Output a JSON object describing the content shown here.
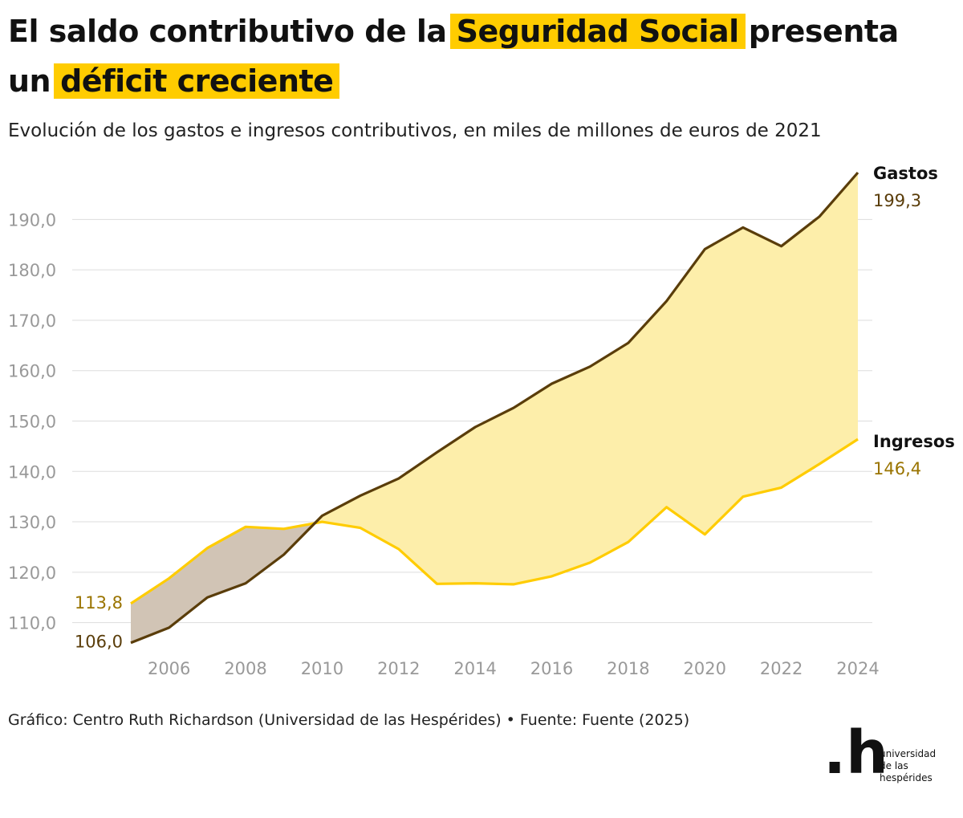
{
  "header": {
    "title_part1": "El saldo contributivo de la",
    "title_highlight1": "Seguridad Social",
    "title_part2": "presenta un",
    "title_highlight2": "déficit creciente",
    "subtitle": "Evolución de los gastos e ingresos contributivos, en miles de millones de euros de 2021"
  },
  "footer": {
    "source": "Gráfico: Centro Ruth Richardson (Universidad de las Hespérides) • Fuente: Fuente (2025)",
    "logo_mark": ".h",
    "logo_line1": "universidad",
    "logo_line2": "de las",
    "logo_line3": "hespérides"
  },
  "chart_data": {
    "type": "line",
    "title": "",
    "xlabel": "",
    "ylabel": "",
    "x": [
      2005,
      2006,
      2007,
      2008,
      2009,
      2010,
      2011,
      2012,
      2013,
      2014,
      2015,
      2016,
      2017,
      2018,
      2019,
      2020,
      2021,
      2022,
      2023,
      2024
    ],
    "x_ticks": [
      2006,
      2008,
      2010,
      2012,
      2014,
      2016,
      2018,
      2020,
      2022,
      2024
    ],
    "x_tick_labels": [
      "2006",
      "2008",
      "2010",
      "2012",
      "2014",
      "2016",
      "2018",
      "2020",
      "2022",
      "2024"
    ],
    "y_ticks": [
      110,
      120,
      130,
      140,
      150,
      160,
      170,
      180,
      190
    ],
    "y_tick_labels": [
      "110,0",
      "120,0",
      "130,0",
      "140,0",
      "150,0",
      "160,0",
      "170,0",
      "180,0",
      "190,0"
    ],
    "ylim": [
      105,
      199.3
    ],
    "grid": true,
    "series": [
      {
        "name": "Gastos",
        "color": "#5a3d0a",
        "values": [
          106.0,
          109.0,
          115.0,
          117.8,
          123.5,
          131.2,
          135.2,
          138.6,
          143.8,
          148.8,
          152.6,
          157.4,
          160.8,
          165.5,
          173.8,
          184.1,
          188.4,
          184.7,
          190.6,
          199.3
        ],
        "end_label": "199,3",
        "start_label": "106,0"
      },
      {
        "name": "Ingresos",
        "color": "#ffcc00",
        "values": [
          113.8,
          118.8,
          124.8,
          129.0,
          128.6,
          130.0,
          128.8,
          124.6,
          117.7,
          117.8,
          117.6,
          119.2,
          121.9,
          126.0,
          132.9,
          127.5,
          135.0,
          136.8,
          141.5,
          146.4
        ],
        "end_label": "146,4",
        "start_label": "113,8"
      }
    ],
    "fill_colors": {
      "surplus": "#d1c4b5",
      "deficit": "#fdeeaa"
    },
    "label_colors": {
      "gastos_value": "#5a3d0a",
      "ingresos_value": "#9a7400"
    }
  }
}
